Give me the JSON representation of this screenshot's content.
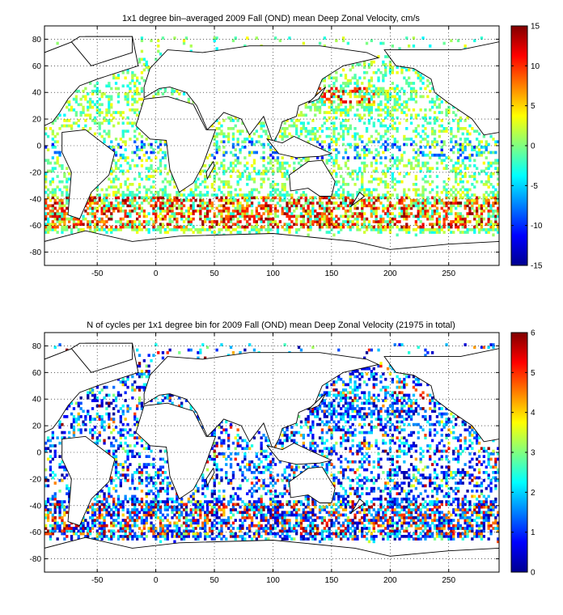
{
  "chart_data": [
    {
      "type": "heatmap",
      "title": "1x1 degree bin–averaged 2009 Fall (OND) mean Deep Zonal Velocity, cm/s",
      "xlabel": "",
      "ylabel": "",
      "xlim": [
        -95,
        293
      ],
      "ylim": [
        -90,
        90
      ],
      "x_ticks": [
        -50,
        0,
        50,
        100,
        150,
        200,
        250
      ],
      "y_ticks": [
        80,
        60,
        40,
        20,
        0,
        -20,
        -40,
        -60,
        -80
      ],
      "grid": true,
      "colorbar": {
        "min": -15,
        "max": 15,
        "ticks": [
          15,
          10,
          5,
          0,
          -5,
          -10,
          -15
        ],
        "placement": "right"
      },
      "colormap": [
        "#00008f",
        "#0000ff",
        "#0080ff",
        "#00ffff",
        "#80ff80",
        "#ffff00",
        "#ff8000",
        "#ff0000",
        "#800000"
      ],
      "bands": [
        {
          "lat": [
            -62,
            -56
          ],
          "lon": [
            -60,
            290
          ],
          "value": 7
        },
        {
          "lat": [
            -50,
            -38
          ],
          "lon": [
            -60,
            150
          ],
          "value": 6
        },
        {
          "lat": [
            -20,
            0
          ],
          "lon": [
            -60,
            290
          ],
          "value": -2
        },
        {
          "lat": [
            32,
            44
          ],
          "lon": [
            130,
            200
          ],
          "value": 5
        },
        {
          "lat": [
            20,
            60
          ],
          "lon": [
            -60,
            0
          ],
          "value": 1
        }
      ]
    },
    {
      "type": "heatmap",
      "title": "N of cycles per 1x1 degree bin for 2009 Fall (OND) mean Deep Zonal Velocity (21975 in total)",
      "xlabel": "",
      "ylabel": "",
      "xlim": [
        -95,
        293
      ],
      "ylim": [
        -90,
        90
      ],
      "x_ticks": [
        -50,
        0,
        50,
        100,
        150,
        200,
        250
      ],
      "y_ticks": [
        80,
        60,
        40,
        20,
        0,
        -20,
        -40,
        -60,
        -80
      ],
      "grid": true,
      "colorbar": {
        "min": 0,
        "max": 6,
        "ticks": [
          6,
          5,
          4,
          3,
          2,
          1,
          0
        ],
        "placement": "right"
      },
      "colormap": [
        "#00008f",
        "#0000ff",
        "#0080ff",
        "#00ffff",
        "#80ff80",
        "#ffff00",
        "#ff8000",
        "#ff0000",
        "#800000"
      ],
      "total_cycles": 21975
    }
  ]
}
